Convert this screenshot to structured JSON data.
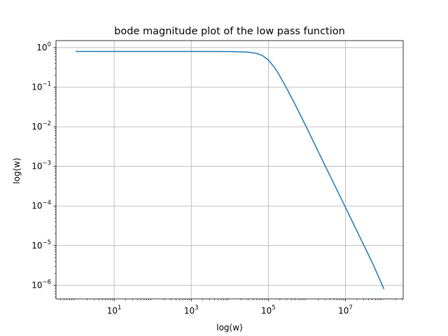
{
  "chart_data": {
    "type": "line",
    "title": "bode magnitude plot of the low pass function",
    "xlabel": "log(w)",
    "ylabel": "log(w)",
    "x_scale": "log",
    "y_scale": "log",
    "xlim": [
      0.31,
      316000000
    ],
    "ylim": [
      4.5e-07,
      1.5
    ],
    "grid": true,
    "x_ticks": [
      {
        "value": 10,
        "base": "10",
        "exp": "1"
      },
      {
        "value": 1000,
        "base": "10",
        "exp": "3"
      },
      {
        "value": 100000,
        "base": "10",
        "exp": "5"
      },
      {
        "value": 10000000,
        "base": "10",
        "exp": "7"
      }
    ],
    "y_ticks": [
      {
        "value": 1,
        "base": "10",
        "exp": "0"
      },
      {
        "value": 0.1,
        "base": "10",
        "exp": "−1"
      },
      {
        "value": 0.01,
        "base": "10",
        "exp": "−2"
      },
      {
        "value": 0.001,
        "base": "10",
        "exp": "−3"
      },
      {
        "value": 0.0001,
        "base": "10",
        "exp": "−4"
      },
      {
        "value": 1e-05,
        "base": "10",
        "exp": "−5"
      },
      {
        "value": 1e-06,
        "base": "10",
        "exp": "−6"
      }
    ],
    "series": [
      {
        "color": "#1f77b4",
        "x": [
          1,
          10,
          100,
          1000,
          10000,
          30000,
          50000,
          70000,
          100000,
          150000,
          200000,
          300000,
          500000,
          1000000,
          2000000,
          5000000,
          10000000,
          20000000,
          50000000,
          100000000
        ],
        "y": [
          0.8,
          0.8,
          0.8,
          0.8,
          0.795,
          0.765,
          0.71,
          0.63,
          0.49,
          0.3,
          0.19,
          0.093,
          0.036,
          0.0093,
          0.0023,
          0.00037,
          9.3e-05,
          2.3e-05,
          3.7e-06,
          8e-07
        ]
      }
    ]
  }
}
